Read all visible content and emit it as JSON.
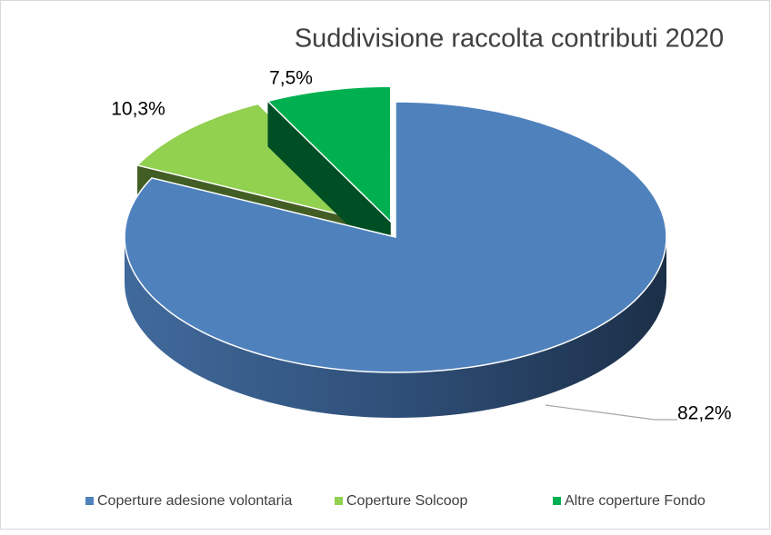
{
  "chart_data": {
    "type": "pie",
    "title": "Suddivisione raccolta contributi 2020",
    "categories": [
      "Coperture adesione volontaria",
      "Coperture Solcoop",
      "Altre coperture Fondo"
    ],
    "values": [
      82.2,
      10.3,
      7.5
    ],
    "value_labels": [
      "82,2%",
      "10,3%",
      "7,5%"
    ],
    "colors": [
      "#4f81bd",
      "#92d050",
      "#00b050"
    ],
    "legend": "bottom"
  }
}
